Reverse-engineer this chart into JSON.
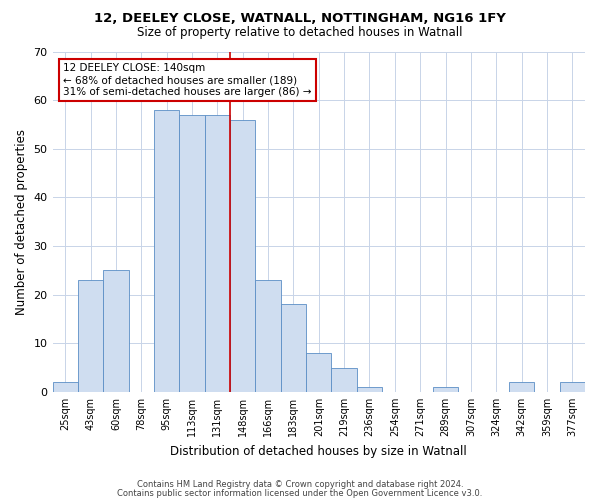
{
  "title": "12, DEELEY CLOSE, WATNALL, NOTTINGHAM, NG16 1FY",
  "subtitle": "Size of property relative to detached houses in Watnall",
  "xlabel": "Distribution of detached houses by size in Watnall",
  "ylabel": "Number of detached properties",
  "bar_labels": [
    "25sqm",
    "43sqm",
    "60sqm",
    "78sqm",
    "95sqm",
    "113sqm",
    "131sqm",
    "148sqm",
    "166sqm",
    "183sqm",
    "201sqm",
    "219sqm",
    "236sqm",
    "254sqm",
    "271sqm",
    "289sqm",
    "307sqm",
    "324sqm",
    "342sqm",
    "359sqm",
    "377sqm"
  ],
  "bar_values": [
    2,
    23,
    25,
    0,
    58,
    57,
    57,
    56,
    23,
    18,
    8,
    5,
    1,
    0,
    0,
    1,
    0,
    0,
    2,
    0,
    2
  ],
  "bar_color": "#cfddf0",
  "bar_edgecolor": "#5b8ec5",
  "vline_color": "#cc0000",
  "annotation_line1": "12 DEELEY CLOSE: 140sqm",
  "annotation_line2": "← 68% of detached houses are smaller (189)",
  "annotation_line3": "31% of semi-detached houses are larger (86) →",
  "annotation_box_edgecolor": "#cc0000",
  "ylim": [
    0,
    70
  ],
  "yticks": [
    0,
    10,
    20,
    30,
    40,
    50,
    60,
    70
  ],
  "footer1": "Contains HM Land Registry data © Crown copyright and database right 2024.",
  "footer2": "Contains public sector information licensed under the Open Government Licence v3.0.",
  "background_color": "#ffffff",
  "grid_color": "#c8d4e8"
}
